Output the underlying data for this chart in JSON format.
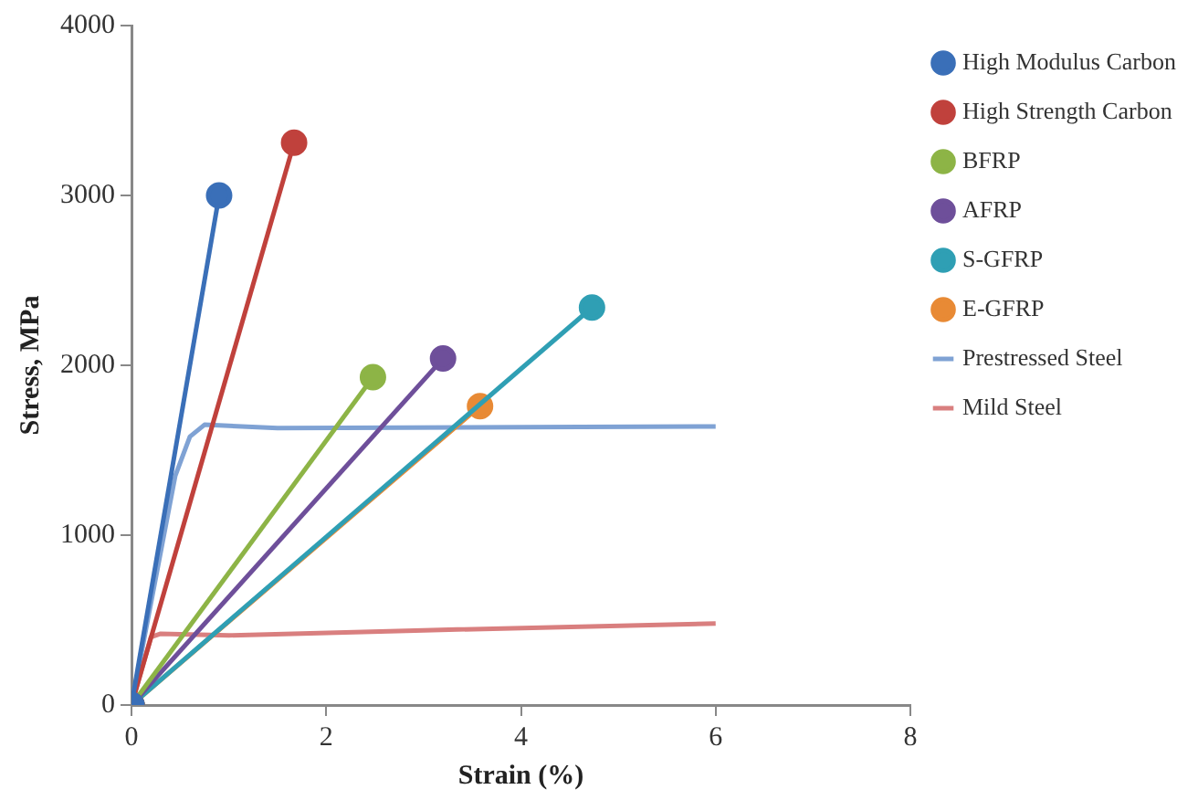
{
  "chart_data": {
    "type": "line",
    "xlabel": "Strain (%)",
    "ylabel": "Stress, MPa",
    "xlim": [
      0,
      8
    ],
    "xticks": [
      0,
      2,
      4,
      6,
      8
    ],
    "ylim": [
      0,
      4000
    ],
    "yticks": [
      0,
      1000,
      2000,
      3000,
      4000
    ],
    "grid": false,
    "legend": "right",
    "line_style": "solid",
    "series": [
      {
        "name": "High Modulus Carbon",
        "color": "#3a6fb8",
        "marker": "circle",
        "x": [
          0,
          0.9
        ],
        "values": [
          0,
          3000
        ]
      },
      {
        "name": "High Strength Carbon",
        "color": "#c0413c",
        "marker": "circle",
        "x": [
          0,
          1.67
        ],
        "values": [
          0,
          3310
        ]
      },
      {
        "name": "BFRP",
        "color": "#8db446",
        "marker": "circle",
        "x": [
          0,
          2.48
        ],
        "values": [
          0,
          1930
        ]
      },
      {
        "name": "AFRP",
        "color": "#6e4f9a",
        "marker": "circle",
        "x": [
          0,
          3.2
        ],
        "values": [
          0,
          2040
        ]
      },
      {
        "name": "S-GFRP",
        "color": "#2f9fb4",
        "marker": "circle",
        "x": [
          0,
          4.73
        ],
        "values": [
          0,
          2340
        ]
      },
      {
        "name": "E-GFRP",
        "color": "#e88a35",
        "marker": "circle",
        "x": [
          0,
          3.58
        ],
        "values": [
          0,
          1760
        ]
      },
      {
        "name": "Prestressed Steel",
        "color": "#7fa2d4",
        "marker": "none",
        "x": [
          0,
          0.45,
          0.6,
          0.75,
          1.5,
          6
        ],
        "values": [
          0,
          1350,
          1580,
          1650,
          1630,
          1640
        ]
      },
      {
        "name": "Mild Steel",
        "color": "#d97f7f",
        "marker": "none",
        "x": [
          0,
          0.2,
          0.3,
          1,
          3,
          6
        ],
        "values": [
          0,
          400,
          420,
          410,
          440,
          480
        ]
      }
    ]
  }
}
